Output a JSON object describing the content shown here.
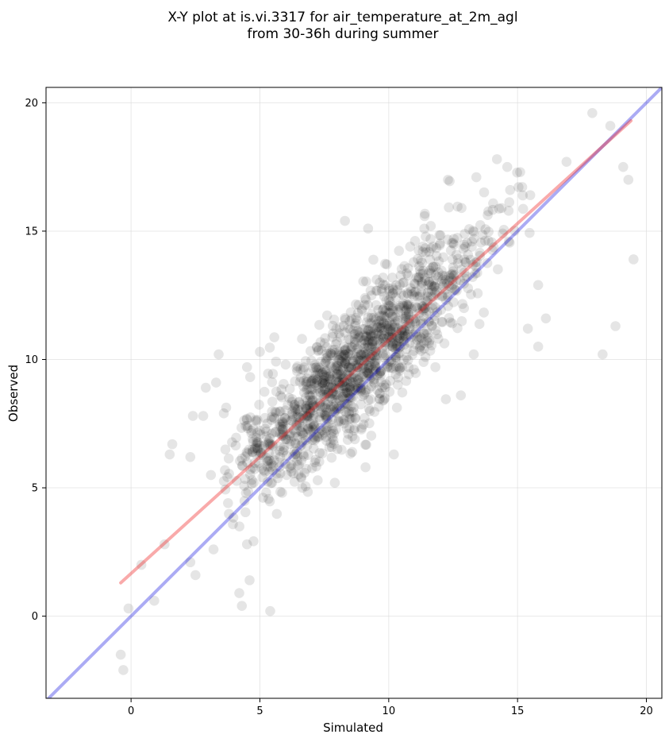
{
  "chart_data": {
    "type": "scatter",
    "title_line1": "X-Y plot at is.vi.3317 for air_temperature_at_2m_agl",
    "title_line2": "from 30-36h during summer",
    "xlabel": "Simulated",
    "ylabel": "Observed",
    "xlim": [
      -3.3,
      20.6
    ],
    "ylim": [
      -3.2,
      20.6
    ],
    "xticks": [
      0,
      5,
      10,
      15,
      20
    ],
    "yticks": [
      0,
      5,
      10,
      15,
      20
    ],
    "xtick_labels": [
      "0",
      "5",
      "10",
      "15",
      "20"
    ],
    "ytick_labels": [
      "0",
      "5",
      "10",
      "15",
      "20"
    ],
    "grid": true,
    "point_color": "#000000",
    "point_alpha": 0.1,
    "identity_line": {
      "color": "#0000dd",
      "x": [
        -3.3,
        20.6
      ],
      "y": [
        -3.3,
        20.6
      ]
    },
    "fit_line": {
      "color": "#ee2020",
      "x": [
        -0.4,
        19.4
      ],
      "y": [
        1.3,
        19.3
      ]
    },
    "points_outliers": [
      [
        -0.4,
        -1.5
      ],
      [
        -0.3,
        -2.1
      ],
      [
        -0.1,
        0.3
      ],
      [
        0.9,
        0.6
      ],
      [
        0.4,
        2.0
      ],
      [
        1.3,
        2.8
      ],
      [
        1.5,
        6.3
      ],
      [
        1.6,
        6.7
      ],
      [
        2.3,
        6.2
      ],
      [
        2.4,
        7.8
      ],
      [
        2.8,
        7.8
      ],
      [
        2.9,
        8.9
      ],
      [
        3.3,
        9.1
      ],
      [
        3.4,
        10.2
      ],
      [
        3.6,
        7.9
      ],
      [
        4.2,
        0.9
      ],
      [
        4.3,
        0.4
      ],
      [
        4.6,
        1.4
      ],
      [
        5.4,
        0.2
      ],
      [
        4.5,
        9.7
      ],
      [
        5.0,
        10.3
      ],
      [
        6.0,
        9.8
      ],
      [
        8.3,
        15.4
      ],
      [
        9.2,
        15.1
      ],
      [
        9.1,
        5.8
      ],
      [
        10.2,
        6.3
      ],
      [
        14.6,
        17.5
      ],
      [
        15.1,
        17.3
      ],
      [
        16.9,
        17.7
      ],
      [
        17.9,
        19.6
      ],
      [
        18.6,
        19.1
      ],
      [
        19.1,
        17.5
      ],
      [
        19.3,
        17.0
      ],
      [
        19.5,
        13.9
      ],
      [
        18.8,
        11.3
      ],
      [
        18.3,
        10.2
      ],
      [
        15.8,
        10.5
      ],
      [
        16.1,
        11.6
      ],
      [
        15.4,
        11.2
      ],
      [
        12.8,
        8.6
      ],
      [
        13.3,
        10.2
      ],
      [
        15.8,
        12.9
      ],
      [
        3.1,
        5.5
      ],
      [
        2.5,
        1.6
      ],
      [
        2.3,
        2.1
      ],
      [
        3.2,
        2.6
      ],
      [
        4.5,
        2.8
      ],
      [
        12.3,
        17.0
      ],
      [
        13.4,
        17.1
      ],
      [
        14.2,
        17.8
      ]
    ],
    "cluster": {
      "n": 1400,
      "x_mean": 8.8,
      "x_sd": 2.55,
      "x_min": 3.6,
      "x_max": 15.6,
      "slope": 0.9,
      "intercept": 1.85,
      "resid_sd": 1.2
    }
  }
}
